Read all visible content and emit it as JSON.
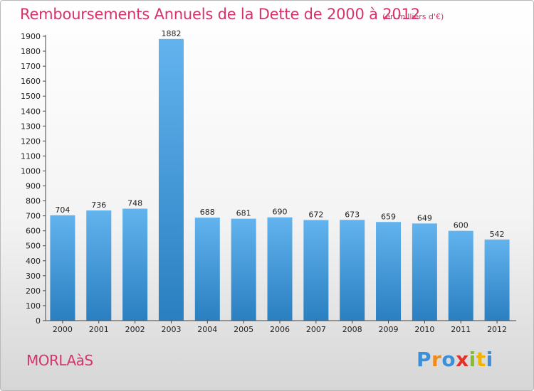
{
  "title": "Remboursements Annuels de la Dette de 2000 à 2012",
  "subtitle": "(en milliers d'€)",
  "commune": "MORLAàS",
  "logo": {
    "letters": [
      "P",
      "r",
      "o",
      "x",
      "i",
      "t",
      "i"
    ],
    "colors": [
      "#3a8fd8",
      "#f08a1c",
      "#3a8fd8",
      "#e0322a",
      "#84bf2a",
      "#f0b400",
      "#3a8fd8"
    ]
  },
  "colors": {
    "bar_light": "#62b3ee",
    "bar_dark": "#2a7fc0",
    "accent": "#d6336c"
  },
  "chart_data": {
    "type": "bar",
    "categories": [
      "2000",
      "2001",
      "2002",
      "2003",
      "2004",
      "2005",
      "2006",
      "2007",
      "2008",
      "2009",
      "2010",
      "2011",
      "2012"
    ],
    "values": [
      704,
      736,
      748,
      1882,
      688,
      681,
      690,
      672,
      673,
      659,
      649,
      600,
      542
    ],
    "ylim": [
      0,
      1900
    ],
    "yticks": [
      0,
      100,
      200,
      300,
      400,
      500,
      600,
      700,
      800,
      900,
      1000,
      1100,
      1200,
      1300,
      1400,
      1500,
      1600,
      1700,
      1800,
      1900
    ],
    "grid": false,
    "data_labels": true
  }
}
